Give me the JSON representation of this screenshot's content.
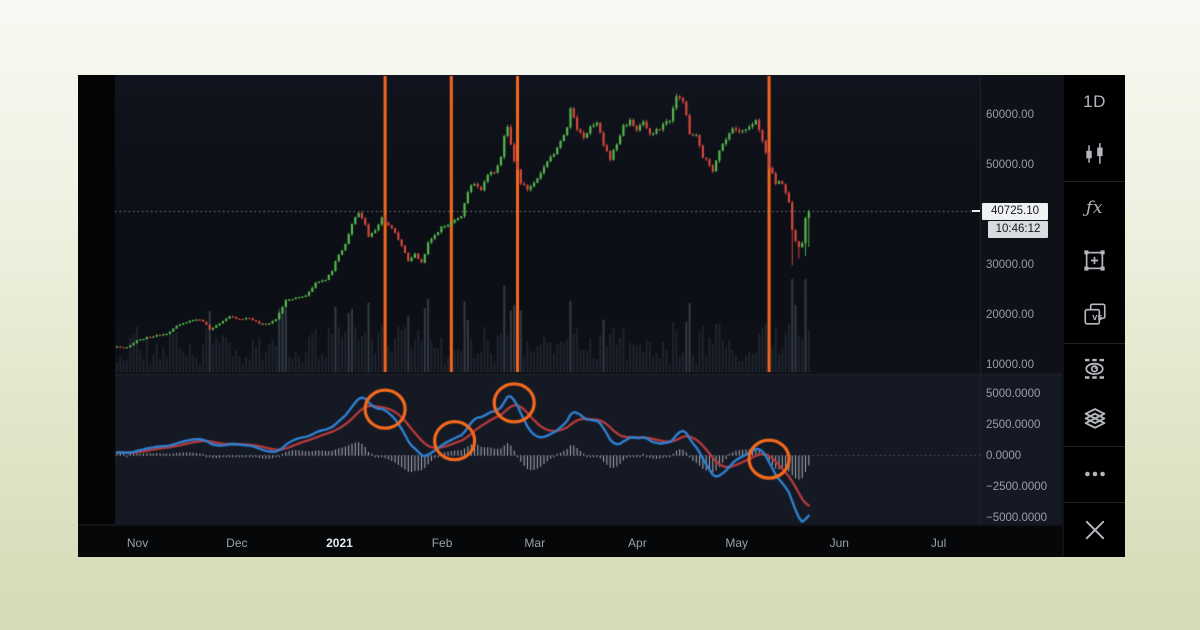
{
  "colors": {
    "page_bg_top": "#f8f9f3",
    "page_bg_bottom": "#d4dbb6",
    "window_bg": "#060708",
    "main_panel_bg": "#0e1118",
    "indicator_panel_bg": "#151924",
    "up": "#55b94c",
    "down": "#d6483f",
    "volume": "#1f242e",
    "volume_bright": "#333a46",
    "macd_line": "#2f80d0",
    "signal_line": "#b03a3c",
    "histogram": "#aaaeb9",
    "annotation": "#f4691c",
    "axis_text": "#989da6",
    "dotted_line": "#9aa0a8",
    "separator": "#1e232d",
    "badge_price_bg": "#f0f1f3",
    "badge_time_bg": "#d9dbde",
    "badge_text": "#15181e",
    "icon": "#b4b7be"
  },
  "price_axis": {
    "tick_labels": [
      "60000.00",
      "50000.00",
      "30000.00",
      "20000.00",
      "10000.00"
    ],
    "tick_values": [
      60000,
      50000,
      30000,
      20000,
      10000
    ],
    "last_price": "40725.10",
    "last_price_value": 40725.1,
    "last_time": "10:46:12"
  },
  "indicator_axis": {
    "tick_labels": [
      "5000.0000",
      "2500.0000",
      "0.0000",
      "−2500.0000",
      "−5000.0000"
    ],
    "tick_values": [
      5000,
      2500,
      0,
      -2500,
      -5000
    ]
  },
  "time_axis": {
    "labels": [
      {
        "text": "Nov",
        "day": 5
      },
      {
        "text": "Dec",
        "day": 35
      },
      {
        "text": "2021",
        "day": 66,
        "emphasis": true
      },
      {
        "text": "Feb",
        "day": 97
      },
      {
        "text": "Mar",
        "day": 125
      },
      {
        "text": "Apr",
        "day": 156
      },
      {
        "text": "May",
        "day": 186
      },
      {
        "text": "Jun",
        "day": 217
      },
      {
        "text": "Jul",
        "day": 247
      }
    ]
  },
  "sidebar": {
    "items": [
      {
        "type": "text",
        "name": "interval-button",
        "label": "1D"
      },
      {
        "type": "icon",
        "name": "chart-type-button",
        "icon": "candles-icon"
      },
      {
        "type": "sep"
      },
      {
        "type": "text",
        "name": "indicators-button",
        "label": "ƒx"
      },
      {
        "type": "icon",
        "name": "alert-button",
        "icon": "square-plus-icon"
      },
      {
        "type": "icon",
        "name": "compare-button",
        "icon": "compare-vs-icon",
        "badge": "vs"
      },
      {
        "type": "sep"
      },
      {
        "type": "icon",
        "name": "hide-drawings-button",
        "icon": "eye-hidden-icon"
      },
      {
        "type": "icon",
        "name": "object-tree-button",
        "icon": "layers-icon"
      },
      {
        "type": "sep"
      },
      {
        "type": "icon",
        "name": "more-button",
        "icon": "ellipsis-icon"
      },
      {
        "type": "sep"
      },
      {
        "type": "icon",
        "name": "close-button",
        "icon": "close-icon"
      }
    ]
  },
  "chart_data": {
    "type": "candlestick",
    "lower_panel": "macd-oscillator",
    "x_unit": "day",
    "days_total": 210,
    "y_axis_range": [
      9500,
      68000
    ],
    "indicator_axis_range": [
      -5800,
      6200
    ],
    "macd_params": [
      12,
      26,
      9
    ],
    "last_close": 40725.1,
    "price_keyframes": [
      [
        0,
        13700
      ],
      [
        3,
        13450
      ],
      [
        6,
        14850
      ],
      [
        9,
        15500
      ],
      [
        12,
        15900
      ],
      [
        15,
        16300
      ],
      [
        18,
        17700
      ],
      [
        21,
        18650
      ],
      [
        24,
        19150
      ],
      [
        26,
        18750
      ],
      [
        28,
        17150
      ],
      [
        31,
        18250
      ],
      [
        34,
        19650
      ],
      [
        37,
        19250
      ],
      [
        40,
        19400
      ],
      [
        43,
        18300
      ],
      [
        45,
        18050
      ],
      [
        48,
        19150
      ],
      [
        51,
        22900
      ],
      [
        54,
        23400
      ],
      [
        57,
        23850
      ],
      [
        60,
        26450
      ],
      [
        63,
        27100
      ],
      [
        65,
        29000
      ],
      [
        67,
        32200
      ],
      [
        69,
        34050
      ],
      [
        71,
        38150
      ],
      [
        73,
        40550
      ],
      [
        75,
        38150
      ],
      [
        76,
        35600
      ],
      [
        78,
        37050
      ],
      [
        80,
        39450
      ],
      [
        82,
        38050
      ],
      [
        84,
        36350
      ],
      [
        86,
        33900
      ],
      [
        88,
        30900
      ],
      [
        90,
        32150
      ],
      [
        92,
        30450
      ],
      [
        94,
        34300
      ],
      [
        96,
        36000
      ],
      [
        98,
        37500
      ],
      [
        100,
        38100
      ],
      [
        102,
        38850
      ],
      [
        104,
        40050
      ],
      [
        106,
        44800
      ],
      [
        108,
        46350
      ],
      [
        110,
        44900
      ],
      [
        112,
        47900
      ],
      [
        114,
        48650
      ],
      [
        116,
        51600
      ],
      [
        117,
        55900
      ],
      [
        118,
        57400
      ],
      [
        119,
        54100
      ],
      [
        120,
        50450
      ],
      [
        121,
        48900
      ],
      [
        122,
        46300
      ],
      [
        124,
        45150
      ],
      [
        126,
        46200
      ],
      [
        128,
        48500
      ],
      [
        130,
        50400
      ],
      [
        132,
        52400
      ],
      [
        134,
        54900
      ],
      [
        136,
        57800
      ],
      [
        137,
        61200
      ],
      [
        139,
        57300
      ],
      [
        141,
        55600
      ],
      [
        143,
        57600
      ],
      [
        145,
        58100
      ],
      [
        147,
        54100
      ],
      [
        149,
        51300
      ],
      [
        151,
        54250
      ],
      [
        153,
        57800
      ],
      [
        155,
        58750
      ],
      [
        157,
        57100
      ],
      [
        159,
        58700
      ],
      [
        161,
        55900
      ],
      [
        163,
        56800
      ],
      [
        165,
        58100
      ],
      [
        167,
        59100
      ],
      [
        169,
        63500
      ],
      [
        171,
        63100
      ],
      [
        173,
        56200
      ],
      [
        175,
        55700
      ],
      [
        177,
        51700
      ],
      [
        179,
        50050
      ],
      [
        180,
        49000
      ],
      [
        182,
        53200
      ],
      [
        184,
        54900
      ],
      [
        186,
        57700
      ],
      [
        188,
        56450
      ],
      [
        190,
        57400
      ],
      [
        193,
        58900
      ],
      [
        195,
        55000
      ],
      [
        197,
        49700
      ],
      [
        199,
        46500
      ],
      [
        201,
        46400
      ],
      [
        203,
        42800
      ],
      [
        204,
        36900
      ],
      [
        205,
        34800
      ],
      [
        206,
        33500
      ],
      [
        207,
        34600
      ],
      [
        208,
        39600
      ],
      [
        209,
        40725.1
      ]
    ],
    "overrides": [
      {
        "day": 204,
        "low": 29900
      },
      {
        "day": 206,
        "low": 31300
      },
      {
        "day": 208,
        "low": 31800
      },
      {
        "day": 209,
        "close": 40725.1,
        "low": 33600
      }
    ],
    "annotations": {
      "vertical_line_days": [
        81,
        101,
        121,
        197
      ],
      "circle_days": [
        81,
        102,
        120,
        197
      ],
      "color": "#f4691c"
    }
  }
}
